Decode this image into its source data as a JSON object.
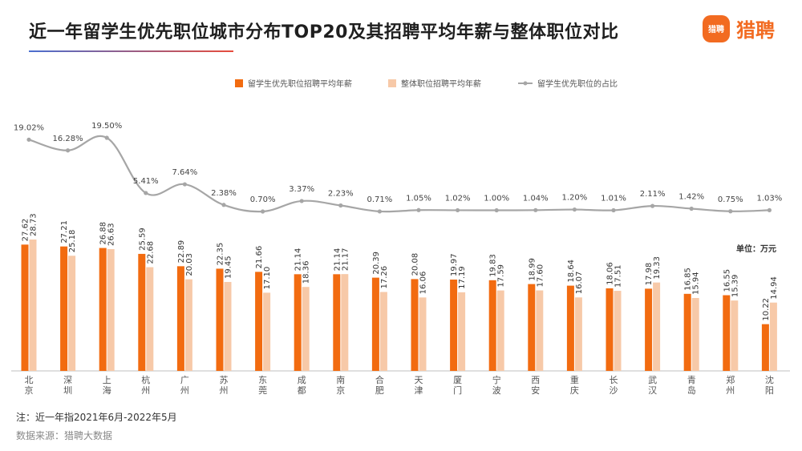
{
  "header": {
    "title": "近一年留学生优先职位城市分布TOP20及其招聘平均年薪与整体职位对比",
    "logo_mark": "猎聘",
    "logo_text": "猎聘"
  },
  "footer": {
    "note": "注：近一年指2021年6月-2022年5月",
    "source": "数据来源：猎聘大数据"
  },
  "chart_data": {
    "type": "bar",
    "unit_label": "单位：万元",
    "categories": [
      "北京",
      "深圳",
      "上海",
      "杭州",
      "广州",
      "苏州",
      "东莞",
      "成都",
      "南京",
      "合肥",
      "天津",
      "厦门",
      "宁波",
      "西安",
      "重庆",
      "长沙",
      "武汉",
      "青岛",
      "郑州",
      "沈阳"
    ],
    "series": [
      {
        "name": "留学生优先职位招聘平均年薪",
        "kind": "bar",
        "color": "#f26b10",
        "values": [
          27.62,
          27.21,
          26.88,
          25.59,
          22.89,
          22.35,
          21.66,
          21.14,
          21.14,
          20.39,
          20.08,
          19.97,
          19.83,
          18.99,
          18.64,
          18.06,
          17.98,
          16.85,
          16.55,
          10.22
        ]
      },
      {
        "name": "整体职位招聘平均年薪",
        "kind": "bar",
        "color": "#f7c9a8",
        "values": [
          28.73,
          25.18,
          26.63,
          22.68,
          20.03,
          19.45,
          17.1,
          18.36,
          21.17,
          17.26,
          16.06,
          17.19,
          17.59,
          17.6,
          16.07,
          17.51,
          19.33,
          15.94,
          15.39,
          14.94
        ]
      },
      {
        "name": "留学生优先职位的占比",
        "kind": "line",
        "color": "#a6a6a6",
        "labels": [
          "19.02%",
          "16.28%",
          "19.50%",
          "5.41%",
          "7.64%",
          "2.38%",
          "0.70%",
          "3.37%",
          "2.23%",
          "0.71%",
          "1.05%",
          "1.02%",
          "1.00%",
          "1.04%",
          "1.20%",
          "1.01%",
          "2.11%",
          "1.42%",
          "0.75%",
          "1.03%"
        ],
        "values": [
          19.02,
          16.28,
          19.5,
          5.41,
          7.64,
          2.38,
          0.7,
          3.37,
          2.23,
          0.71,
          1.05,
          1.02,
          1.0,
          1.04,
          1.2,
          1.01,
          2.11,
          1.42,
          0.75,
          1.03
        ]
      }
    ],
    "legend_position": "top",
    "grid": false
  }
}
